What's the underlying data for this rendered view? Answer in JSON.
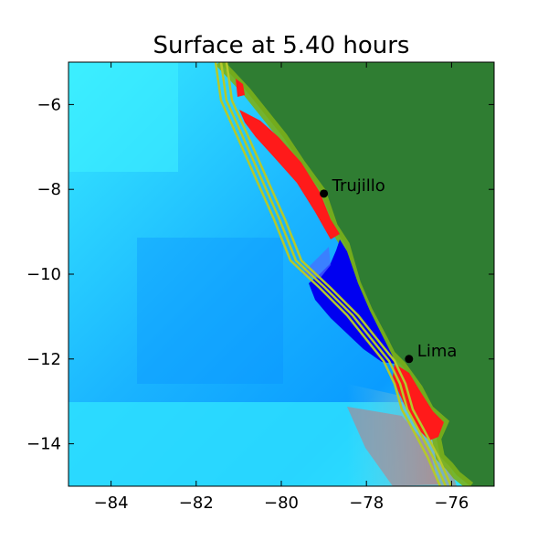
{
  "title": "Surface at 5.40 hours",
  "axes": {
    "xlim": [
      -85,
      -75
    ],
    "ylim": [
      -15,
      -5
    ],
    "x_ticks": [
      -84,
      -82,
      -80,
      -78,
      -76
    ],
    "y_ticks": [
      -6,
      -8,
      -10,
      -12,
      -14
    ],
    "x_tick_labels": [
      "−84",
      "−82",
      "−80",
      "−78",
      "−76"
    ],
    "y_tick_labels": [
      "−6",
      "−8",
      "−10",
      "−12",
      "−14"
    ]
  },
  "cities": [
    {
      "name": "Trujillo",
      "lon": -79.0,
      "lat": -8.1
    },
    {
      "name": "Lima",
      "lon": -77.0,
      "lat": -12.0
    }
  ],
  "colors": {
    "land": "#2f7d32",
    "ocean_light": "#35e8ff",
    "ocean_mid": "#0a9cff",
    "wave_positive": "#ff0000",
    "wave_negative": "#0000ff",
    "contour": "#b5c92a"
  }
}
